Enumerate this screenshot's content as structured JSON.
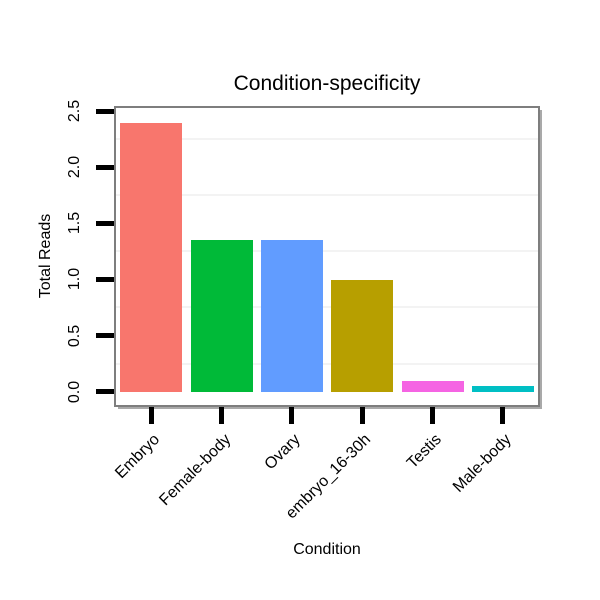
{
  "chart_data": {
    "type": "bar",
    "title": "Condition-specificity",
    "xlabel": "Condition",
    "ylabel": "Total Reads",
    "categories": [
      "Embryo",
      "Female-body",
      "Ovary",
      "embryo_16-30h",
      "Testis",
      "Male-body"
    ],
    "values": [
      2.4,
      1.36,
      1.36,
      1.0,
      0.1,
      0.05
    ],
    "bar_colors": [
      "#F8766D",
      "#00BA38",
      "#619CFF",
      "#B79F00",
      "#F564E3",
      "#00BFC4"
    ],
    "y_ticks": {
      "labels": [
        "0.0",
        "0.5",
        "1.0",
        "1.5",
        "2.0",
        "2.5"
      ],
      "values": [
        0,
        0.5,
        1.0,
        1.5,
        2.0,
        2.5
      ]
    },
    "minor_gridlines": [
      0.25,
      0.75,
      1.25,
      1.75,
      2.25
    ],
    "ylim": [
      -0.12,
      2.53
    ],
    "legend": "none",
    "grid": "minor-horizontal"
  },
  "colors": {
    "background": "#ffffff",
    "panel_border": "#7e7e7e",
    "panel_shadow": "#a9a9a9",
    "tick": "#000000",
    "gridline_minor": "#f3f3f3",
    "text": "#000000"
  }
}
